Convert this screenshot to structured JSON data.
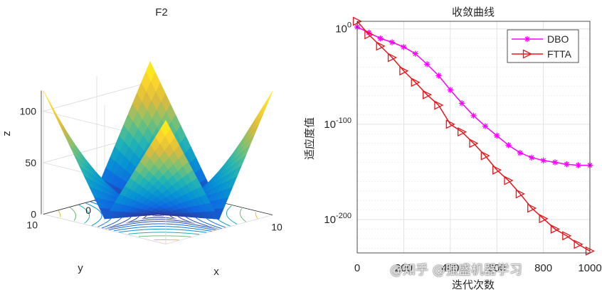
{
  "chart_data": [
    {
      "type": "surface3d",
      "title": "F2",
      "xlabel": "x",
      "ylabel": "y",
      "zlabel": "z",
      "function": "|x| + |y| + |x|*|y|",
      "xlim": [
        -10,
        10
      ],
      "ylim": [
        -10,
        10
      ],
      "zlim": [
        0,
        120
      ],
      "x_ticks": [
        "-10",
        "0",
        "10"
      ],
      "y_ticks": [
        "-10",
        "0",
        "10"
      ],
      "z_ticks": [
        "0",
        "50",
        "100"
      ],
      "contour_on_floor": true,
      "colormap": "parula"
    },
    {
      "type": "line",
      "title": "收敛曲线",
      "xlabel": "迭代次数",
      "ylabel": "适应度值",
      "yscale": "log",
      "xlim": [
        0,
        1000
      ],
      "ylim_exp": [
        -235,
        8
      ],
      "x_ticks": [
        "0",
        "200",
        "400",
        "600",
        "800",
        "1000"
      ],
      "y_ticks": [
        {
          "exp": 0,
          "label_base": "10",
          "label_exp": "0"
        },
        {
          "exp": -100,
          "label_base": "10",
          "label_exp": "-100"
        },
        {
          "exp": -200,
          "label_base": "10",
          "label_exp": "-200"
        }
      ],
      "grid": true,
      "legend_position": "top-right",
      "series": [
        {
          "name": "DBO",
          "color": "#ff00ff",
          "marker": "asterisk",
          "x": [
            0,
            50,
            100,
            150,
            200,
            250,
            300,
            350,
            400,
            450,
            500,
            550,
            600,
            650,
            700,
            750,
            800,
            850,
            900,
            950,
            1000
          ],
          "log10_y": [
            2,
            -4,
            -10,
            -14,
            -19,
            -26,
            -37,
            -49,
            -64,
            -78,
            -91,
            -102,
            -112,
            -122,
            -130,
            -135,
            -138,
            -140,
            -142,
            -143,
            -143
          ]
        },
        {
          "name": "FTTA",
          "color": "#e8161c",
          "marker": "triangle-right",
          "x": [
            0,
            50,
            100,
            150,
            200,
            250,
            300,
            350,
            400,
            450,
            500,
            550,
            600,
            650,
            700,
            750,
            800,
            850,
            900,
            950,
            1000
          ],
          "log10_y": [
            10,
            -6,
            -18,
            -30,
            -44,
            -56,
            -69,
            -80,
            -100,
            -108,
            -120,
            -133,
            -148,
            -159,
            -173,
            -188,
            -199,
            -210,
            -217,
            -226,
            -233
          ]
        }
      ]
    }
  ],
  "watermark": "@知乎 @强盛机器学习"
}
